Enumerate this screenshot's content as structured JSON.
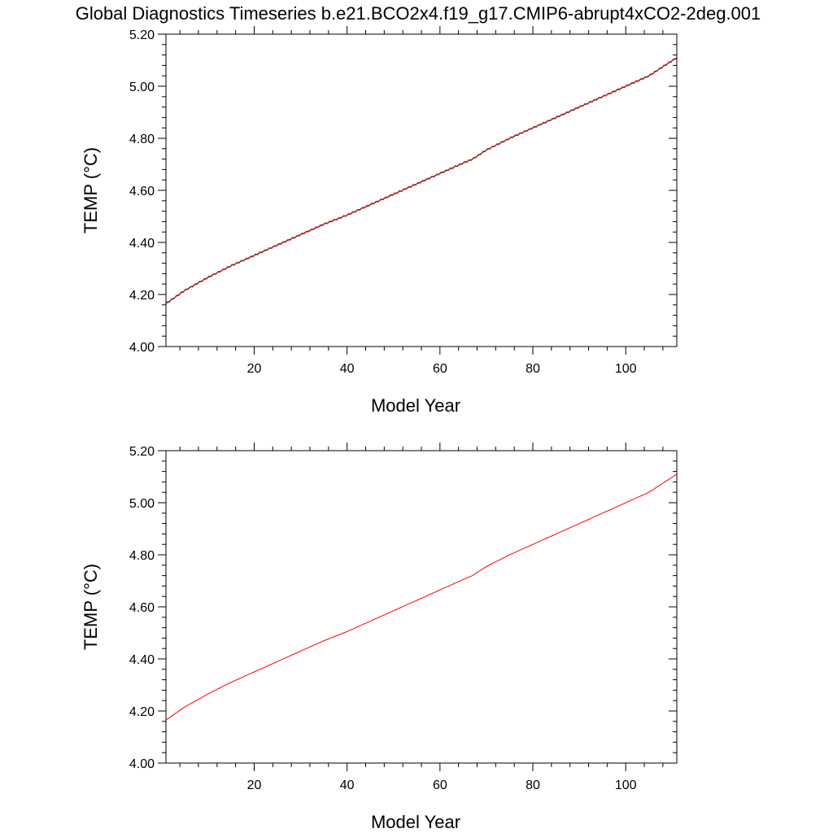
{
  "figure": {
    "title": "Global Diagnostics Timeseries b.e21.BCO2x4.f19_g17.CMIP6-abrupt4xCO2-2deg.001"
  },
  "chart_data": [
    {
      "type": "line",
      "xlabel": "Model Year",
      "ylabel": "TEMP (°C)",
      "xlim": [
        1,
        111
      ],
      "ylim": [
        4.0,
        5.2
      ],
      "x_ticks": [
        "20",
        "40",
        "60",
        "80",
        "100"
      ],
      "y_ticks": [
        "4.00",
        "4.20",
        "4.40",
        "4.60",
        "4.80",
        "5.00",
        "5.20"
      ],
      "grid": false,
      "series": [
        {
          "color": "#ff0000",
          "overlay_color": "#333333",
          "seasonal_cycle": true,
          "x": [
            1,
            5,
            10,
            15,
            20,
            25,
            30,
            35,
            40,
            45,
            50,
            55,
            60,
            65,
            67,
            70,
            75,
            80,
            85,
            90,
            95,
            100,
            105,
            111
          ],
          "values": [
            4.165,
            4.215,
            4.265,
            4.31,
            4.35,
            4.39,
            4.43,
            4.47,
            4.505,
            4.545,
            4.585,
            4.625,
            4.665,
            4.705,
            4.72,
            4.755,
            4.8,
            4.84,
            4.88,
            4.92,
            4.96,
            5.0,
            5.04,
            5.11
          ]
        }
      ]
    },
    {
      "type": "line",
      "xlabel": "Model Year",
      "ylabel": "TEMP (°C)",
      "xlim": [
        1,
        111
      ],
      "ylim": [
        4.0,
        5.2
      ],
      "x_ticks": [
        "20",
        "40",
        "60",
        "80",
        "100"
      ],
      "y_ticks": [
        "4.00",
        "4.20",
        "4.40",
        "4.60",
        "4.80",
        "5.00",
        "5.20"
      ],
      "grid": false,
      "series": [
        {
          "color": "#ff0000",
          "seasonal_cycle": false,
          "x": [
            1,
            5,
            10,
            15,
            20,
            25,
            30,
            35,
            40,
            45,
            50,
            55,
            60,
            65,
            67,
            70,
            75,
            80,
            85,
            90,
            95,
            100,
            105,
            111
          ],
          "values": [
            4.165,
            4.215,
            4.265,
            4.31,
            4.35,
            4.39,
            4.43,
            4.47,
            4.505,
            4.545,
            4.585,
            4.625,
            4.665,
            4.705,
            4.72,
            4.755,
            4.8,
            4.84,
            4.88,
            4.92,
            4.96,
            5.0,
            5.04,
            5.11
          ]
        }
      ]
    }
  ]
}
